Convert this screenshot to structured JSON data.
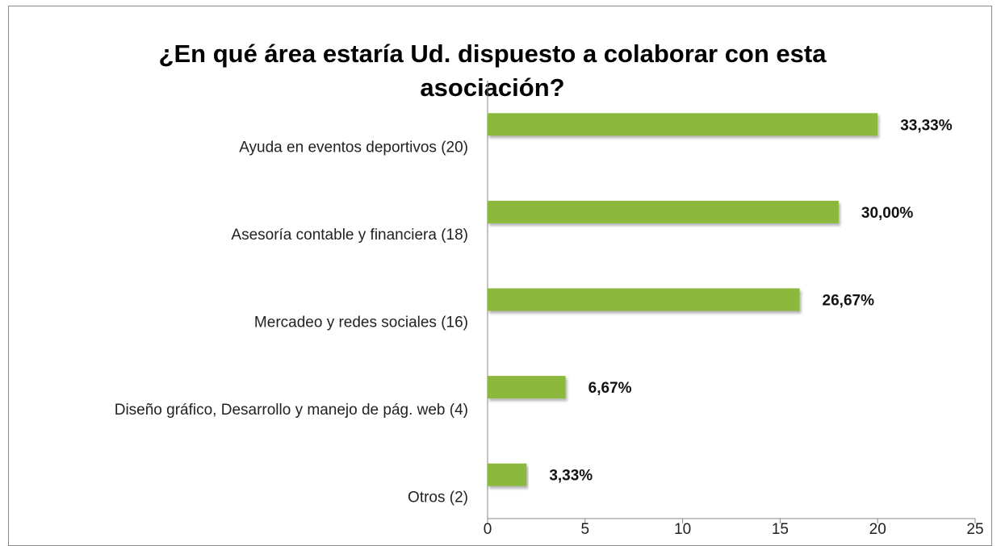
{
  "chart_data": {
    "type": "bar",
    "orientation": "horizontal",
    "title": "¿En qué área estaría Ud. dispuesto a colaborar con esta asociación?",
    "categories": [
      "Ayuda en eventos deportivos  (20)",
      "Asesoría contable y financiera  (18)",
      "Mercadeo y redes sociales (16)",
      "Diseño gráfico, Desarrollo y manejo de pág. web (4)",
      "Otros (2)"
    ],
    "values": [
      20,
      18,
      16,
      4,
      2
    ],
    "value_labels": [
      "33,33%",
      "30,00%",
      "26,67%",
      "6,67%",
      "3,33%"
    ],
    "color": "#8cb83c",
    "xlim": [
      0,
      25
    ],
    "xticks": [
      0,
      5,
      10,
      15,
      20,
      25
    ],
    "grid": false
  }
}
